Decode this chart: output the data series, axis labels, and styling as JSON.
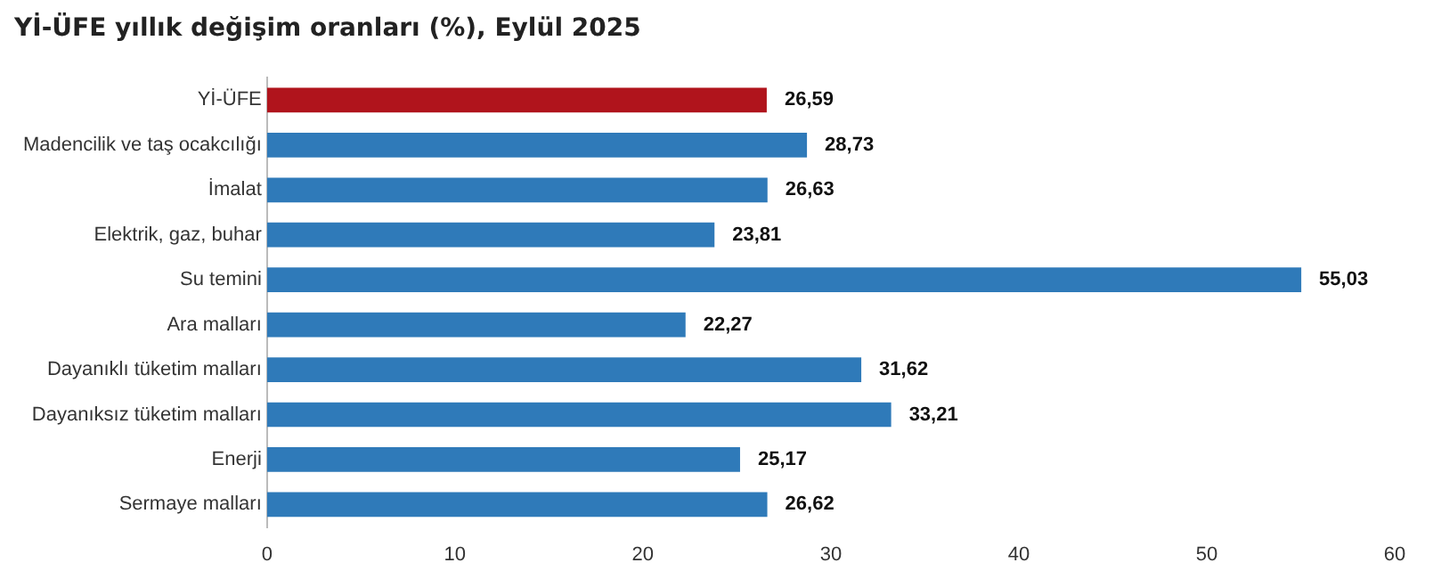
{
  "chart_data": {
    "type": "bar",
    "orientation": "horizontal",
    "title": "Yİ-ÜFE yıllık değişim oranları (%), Eylül 2025",
    "categories": [
      "Yİ-ÜFE",
      "Madencilik ve taş ocakcılığı",
      "İmalat",
      "Elektrik, gaz, buhar",
      "Su temini",
      "Ara malları",
      "Dayanıklı tüketim malları",
      "Dayanıksız tüketim malları",
      "Enerji",
      "Sermaye malları"
    ],
    "values": [
      26.59,
      28.73,
      26.63,
      23.81,
      55.03,
      22.27,
      31.62,
      33.21,
      25.17,
      26.62
    ],
    "colors": [
      "#b0141c",
      "#2f7ab9",
      "#2f7ab9",
      "#2f7ab9",
      "#2f7ab9",
      "#2f7ab9",
      "#2f7ab9",
      "#2f7ab9",
      "#2f7ab9",
      "#2f7ab9"
    ],
    "xlim": [
      0,
      60
    ],
    "xticks": [
      0,
      10,
      20,
      30,
      40,
      50,
      60
    ],
    "value_labels": [
      "26,59",
      "28,73",
      "26,63",
      "23,81",
      "55,03",
      "22,27",
      "31,62",
      "33,21",
      "25,17",
      "26,62"
    ],
    "grid": false,
    "legend": false
  }
}
